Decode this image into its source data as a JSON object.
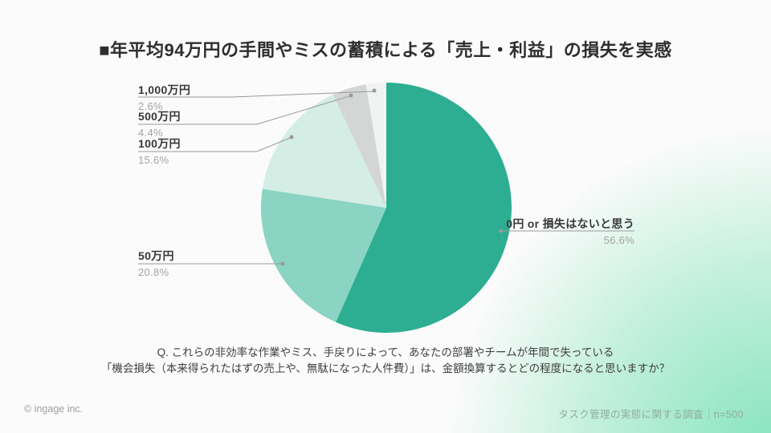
{
  "title": "■年平均94万円の手間やミスの蓄積による「売上・利益」の損失を実感",
  "chart_data": {
    "type": "pie",
    "title": "年平均94万円の手間やミスの蓄積による「売上・利益」の損失を実感",
    "direction": "clockwise",
    "start_angle_deg": 0,
    "legend_position": "callout-labels",
    "slices": [
      {
        "label": "0円 or 損失はないと思う",
        "value": 56.6,
        "pct_label": "56.6%",
        "color": "#2dae93"
      },
      {
        "label": "50万円",
        "value": 20.8,
        "pct_label": "20.8%",
        "color": "#8bd4c3"
      },
      {
        "label": "100万円",
        "value": 15.6,
        "pct_label": "15.6%",
        "color": "#d4eee6"
      },
      {
        "label": "500万円",
        "value": 4.4,
        "pct_label": "4.4%",
        "color": "#d4d6d5"
      },
      {
        "label": "1,000万円",
        "value": 2.6,
        "pct_label": "2.6%",
        "color": "#f1f3f2"
      }
    ]
  },
  "question": {
    "line1": "Q. これらの非効率な作業やミス、手戻りによって、あなたの部署やチームが年間で失っている",
    "line2": "「機会損失（本来得られたはずの売上や、無駄になった人件費）」は、金額換算するとどの程度になると思いますか？"
  },
  "footer": {
    "copyright": "© ingage inc.",
    "source": "タスク管理の実態に関する調査｜n=500"
  },
  "colors": {
    "background_glow": "#7ee2b8",
    "leader_line": "#9a9a9a",
    "leader_dot": "#9a9a9a",
    "pct_text": "#a3a3a3",
    "label_text": "#383838"
  }
}
